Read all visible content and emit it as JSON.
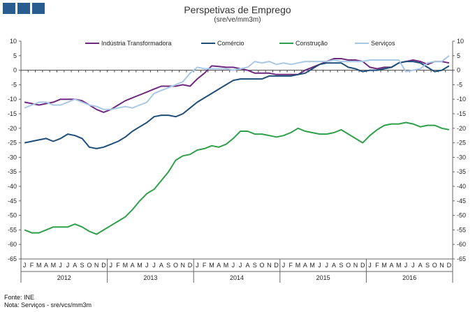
{
  "header": {
    "title": "Perspetivas de Emprego",
    "subtitle": "(sre/ve/mm3m)"
  },
  "footer": {
    "source": "Fonte: INE",
    "note": "Nota: Serviços - sre/vcs/mm3m"
  },
  "chart_data": {
    "type": "line",
    "title": "Perspetivas de Emprego",
    "subtitle": "(sre/ve/mm3m)",
    "ylim": [
      -65,
      10
    ],
    "yticks": [
      10,
      5,
      0,
      -5,
      -10,
      -15,
      -20,
      -25,
      -30,
      -35,
      -40,
      -45,
      -50,
      -55,
      -60,
      -65
    ],
    "grid": false,
    "legend_position": "top",
    "month_labels": [
      "J",
      "F",
      "M",
      "A",
      "M",
      "J",
      "J",
      "A",
      "S",
      "O",
      "N",
      "D",
      "J",
      "F",
      "M",
      "A",
      "M",
      "J",
      "J",
      "A",
      "S",
      "O",
      "N",
      "D",
      "J",
      "F",
      "M",
      "A",
      "M",
      "J",
      "J",
      "A",
      "S",
      "O",
      "N",
      "D",
      "J",
      "F",
      "M",
      "A",
      "M",
      "J",
      "J",
      "A",
      "S",
      "O",
      "N",
      "D",
      "J",
      "F",
      "M",
      "A",
      "M",
      "J",
      "J",
      "A",
      "S",
      "O",
      "N",
      "D"
    ],
    "year_labels": [
      "2012",
      "2013",
      "2014",
      "2015",
      "2016"
    ],
    "series": [
      {
        "name": "Indústria Transformadora",
        "color": "#6e2a7e",
        "values": [
          -11,
          -11.5,
          -12,
          -11.5,
          -11,
          -10,
          -10,
          -10,
          -10.5,
          -12,
          -13.5,
          -14.5,
          -13.5,
          -12,
          -10.5,
          -9.5,
          -8.5,
          -7.5,
          -6.5,
          -5.5,
          -5.5,
          -5.5,
          -5,
          -5.5,
          -3,
          -1,
          1.5,
          1.3,
          1,
          1,
          0.5,
          0,
          -1,
          -1,
          -1,
          -1.5,
          -1.5,
          -1.5,
          -1.5,
          0,
          1,
          2,
          3,
          4,
          4,
          3.5,
          3.5,
          3,
          1,
          0.5,
          1,
          1,
          2.5,
          3,
          3.5,
          3,
          2,
          3,
          3,
          2.5
        ]
      },
      {
        "name": "Comércio",
        "color": "#1f4e79",
        "values": [
          -25,
          -24.5,
          -24,
          -23.5,
          -24.5,
          -23.5,
          -22,
          -22.5,
          -23.5,
          -26.5,
          -27,
          -26.5,
          -25.5,
          -24.5,
          -23,
          -21,
          -19.5,
          -18,
          -16,
          -15.5,
          -15.5,
          -16,
          -15,
          -13,
          -11,
          -9.5,
          -8,
          -6.5,
          -5,
          -3.5,
          -3,
          -3,
          -3,
          -3,
          -2,
          -2,
          -2,
          -2,
          -1.5,
          -1,
          0.5,
          2,
          2.5,
          2.5,
          2.5,
          1,
          0.5,
          -0.5,
          0,
          0,
          0.5,
          1,
          2.5,
          3,
          3,
          2.5,
          1,
          -0.5,
          0,
          1.5
        ]
      },
      {
        "name": "Construção",
        "color": "#2ea04a",
        "values": [
          -55,
          -56,
          -56,
          -55,
          -54,
          -54,
          -54,
          -53,
          -54,
          -55.5,
          -56.5,
          -55,
          -53.5,
          -52,
          -50.5,
          -48,
          -45,
          -42.5,
          -41,
          -38,
          -35,
          -31,
          -29.5,
          -29,
          -27.5,
          -27,
          -26,
          -26.5,
          -25.5,
          -23.5,
          -21,
          -21,
          -22,
          -22,
          -22.5,
          -23,
          -22.5,
          -21.5,
          -20,
          -21,
          -21.5,
          -22,
          -22,
          -21.5,
          -20.5,
          -22,
          -23.5,
          -25,
          -22.5,
          -20.5,
          -19,
          -18.5,
          -18.5,
          -18,
          -18.5,
          -19.5,
          -19,
          -19,
          -20,
          -20.5
        ]
      },
      {
        "name": "Serviços",
        "color": "#a9c8e6",
        "values": [
          -13,
          -12,
          -11,
          -11,
          -12,
          -12,
          -11,
          -10,
          -11,
          -12,
          -12.5,
          -13.5,
          -13.5,
          -13,
          -12.5,
          -13,
          -12,
          -11,
          -8,
          -7,
          -6,
          -5,
          -4,
          -1,
          1,
          0.5,
          0.5,
          0.5,
          0.5,
          0,
          0.5,
          1,
          3,
          2.5,
          3,
          2,
          2.5,
          2,
          2.5,
          3,
          3,
          3,
          3,
          3.5,
          3,
          3,
          3,
          3,
          3.5,
          3.5,
          3.5,
          3.5,
          3.5,
          -0.5,
          0,
          0.5,
          2.5,
          3,
          3,
          5
        ]
      }
    ]
  }
}
